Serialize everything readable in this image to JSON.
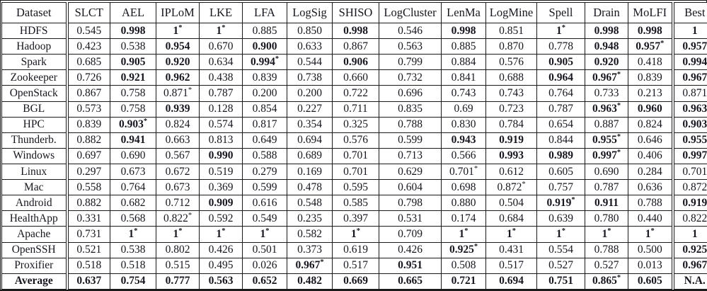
{
  "table": {
    "columns": [
      "Dataset",
      "SLCT",
      "AEL",
      "IPLoM",
      "LKE",
      "LFA",
      "LogSig",
      "SHISO",
      "LogCluster",
      "LenMa",
      "LogMine",
      "Spell",
      "Drain",
      "MoLFI",
      "Best"
    ],
    "notes": {
      "flag_b": "bold (accuracy >= 0.9)",
      "flag_s": "asterisk marker (best accuracy on dataset)"
    },
    "rows": [
      {
        "label": "HDFS",
        "cells": [
          "0.545",
          "0.998|b",
          "1|bs",
          "1|bs",
          "0.885",
          "0.850",
          "0.998|b",
          "0.546",
          "0.998|b",
          "0.851",
          "1|bs",
          "0.998|b",
          "0.998|b",
          "1|b"
        ]
      },
      {
        "label": "Hadoop",
        "cells": [
          "0.423",
          "0.538",
          "0.954|b",
          "0.670",
          "0.900|b",
          "0.633",
          "0.867",
          "0.563",
          "0.885",
          "0.870",
          "0.778",
          "0.948|b",
          "0.957|bs",
          "0.957|b"
        ]
      },
      {
        "label": "Spark",
        "cells": [
          "0.685",
          "0.905|b",
          "0.920|b",
          "0.634",
          "0.994|bs",
          "0.544",
          "0.906|b",
          "0.799",
          "0.884",
          "0.576",
          "0.905|b",
          "0.920|b",
          "0.418",
          "0.994|b"
        ]
      },
      {
        "label": "Zookeeper",
        "cells": [
          "0.726",
          "0.921|b",
          "0.962|b",
          "0.438",
          "0.839",
          "0.738",
          "0.660",
          "0.732",
          "0.841",
          "0.688",
          "0.964|b",
          "0.967|bs",
          "0.839",
          "0.967|b"
        ]
      },
      {
        "label": "OpenStack",
        "cells": [
          "0.867",
          "0.758",
          "0.871|s",
          "0.787",
          "0.200",
          "0.200",
          "0.722",
          "0.696",
          "0.743",
          "0.743",
          "0.764",
          "0.733",
          "0.213",
          "0.871"
        ]
      },
      {
        "label": "BGL",
        "cells": [
          "0.573",
          "0.758",
          "0.939|b",
          "0.128",
          "0.854",
          "0.227",
          "0.711",
          "0.835",
          "0.69",
          "0.723",
          "0.787",
          "0.963|bs",
          "0.960|b",
          "0.963|b"
        ]
      },
      {
        "label": "HPC",
        "cells": [
          "0.839",
          "0.903|bs",
          "0.824",
          "0.574",
          "0.817",
          "0.354",
          "0.325",
          "0.788",
          "0.830",
          "0.784",
          "0.654",
          "0.887",
          "0.824",
          "0.903|b"
        ]
      },
      {
        "label": "Thunderb.",
        "cells": [
          "0.882",
          "0.941|b",
          "0.663",
          "0.813",
          "0.649",
          "0.694",
          "0.576",
          "0.599",
          "0.943|b",
          "0.919|b",
          "0.844",
          "0.955|bs",
          "0.646",
          "0.955|b"
        ]
      },
      {
        "label": "Windows",
        "cells": [
          "0.697",
          "0.690",
          "0.567",
          "0.990|b",
          "0.588",
          "0.689",
          "0.701",
          "0.713",
          "0.566",
          "0.993|b",
          "0.989|b",
          "0.997|bs",
          "0.406",
          "0.997|b"
        ]
      },
      {
        "label": "Linux",
        "cells": [
          "0.297",
          "0.673",
          "0.672",
          "0.519",
          "0.279",
          "0.169",
          "0.701",
          "0.629",
          "0.701|s",
          "0.612",
          "0.605",
          "0.690",
          "0.284",
          "0.701"
        ]
      },
      {
        "label": "Mac",
        "cells": [
          "0.558",
          "0.764",
          "0.673",
          "0.369",
          "0.599",
          "0.478",
          "0.595",
          "0.604",
          "0.698",
          "0.872|s",
          "0.757",
          "0.787",
          "0.636",
          "0.872"
        ]
      },
      {
        "label": "Android",
        "cells": [
          "0.882",
          "0.682",
          "0.712",
          "0.909|b",
          "0.616",
          "0.548",
          "0.585",
          "0.798",
          "0.880",
          "0.504",
          "0.919|bs",
          "0.911|b",
          "0.788",
          "0.919|b"
        ]
      },
      {
        "label": "HealthApp",
        "cells": [
          "0.331",
          "0.568",
          "0.822|s",
          "0.592",
          "0.549",
          "0.235",
          "0.397",
          "0.531",
          "0.174",
          "0.684",
          "0.639",
          "0.780",
          "0.440",
          "0.822"
        ]
      },
      {
        "label": "Apache",
        "cells": [
          "0.731",
          "1|bs",
          "1|bs",
          "1|bs",
          "1|bs",
          "0.582",
          "1|bs",
          "0.709",
          "1|bs",
          "1|bs",
          "1|bs",
          "1|bs",
          "1|bs",
          "1|b"
        ]
      },
      {
        "label": "OpenSSH",
        "cells": [
          "0.521",
          "0.538",
          "0.802",
          "0.426",
          "0.501",
          "0.373",
          "0.619",
          "0.426",
          "0.925|bs",
          "0.431",
          "0.554",
          "0.788",
          "0.500",
          "0.925|b"
        ]
      },
      {
        "label": "Proxifier",
        "cells": [
          "0.518",
          "0.518",
          "0.515",
          "0.495",
          "0.026",
          "0.967|bs",
          "0.517",
          "0.951|b",
          "0.508",
          "0.517",
          "0.527",
          "0.527",
          "0.013",
          "0.967|b"
        ]
      },
      {
        "label": "Average",
        "label_bold": true,
        "cells": [
          "0.637|b",
          "0.754|b",
          "0.777|b",
          "0.563|b",
          "0.652|b",
          "0.482|b",
          "0.669|b",
          "0.665|b",
          "0.721|b",
          "0.694|b",
          "0.751|b",
          "0.865|bs",
          "0.605|b",
          "N.A.|b"
        ]
      }
    ]
  }
}
